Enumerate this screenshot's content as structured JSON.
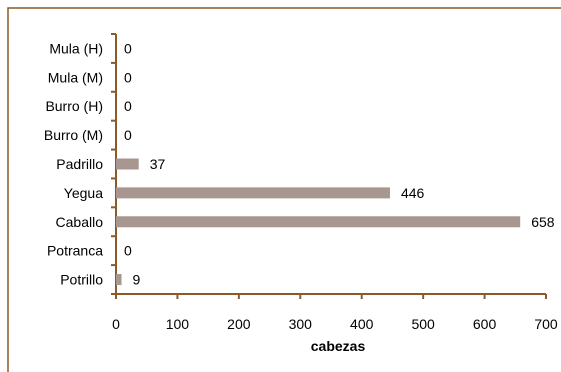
{
  "chart_data": {
    "type": "bar",
    "orientation": "horizontal",
    "categories": [
      "Mula (H)",
      "Mula (M)",
      "Burro (H)",
      "Burro (M)",
      "Padrillo",
      "Yegua",
      "Caballo",
      "Potranca",
      "Potrillo"
    ],
    "values": [
      0,
      0,
      0,
      0,
      37,
      446,
      658,
      0,
      9
    ],
    "data_labels": [
      "0",
      "0",
      "0",
      "0",
      "37",
      "446",
      "658",
      "0",
      "9"
    ],
    "title": "",
    "xlabel": "cabezas",
    "ylabel": "",
    "xlim": [
      0,
      700
    ],
    "x_ticks": [
      "0",
      "100",
      "200",
      "300",
      "400",
      "500",
      "600",
      "700"
    ],
    "grid": false,
    "legend": "none"
  },
  "colors": {
    "bar": "#a89690",
    "axis": "#8b5a2b",
    "frame": "#8b5a2b",
    "text": "#000000"
  }
}
